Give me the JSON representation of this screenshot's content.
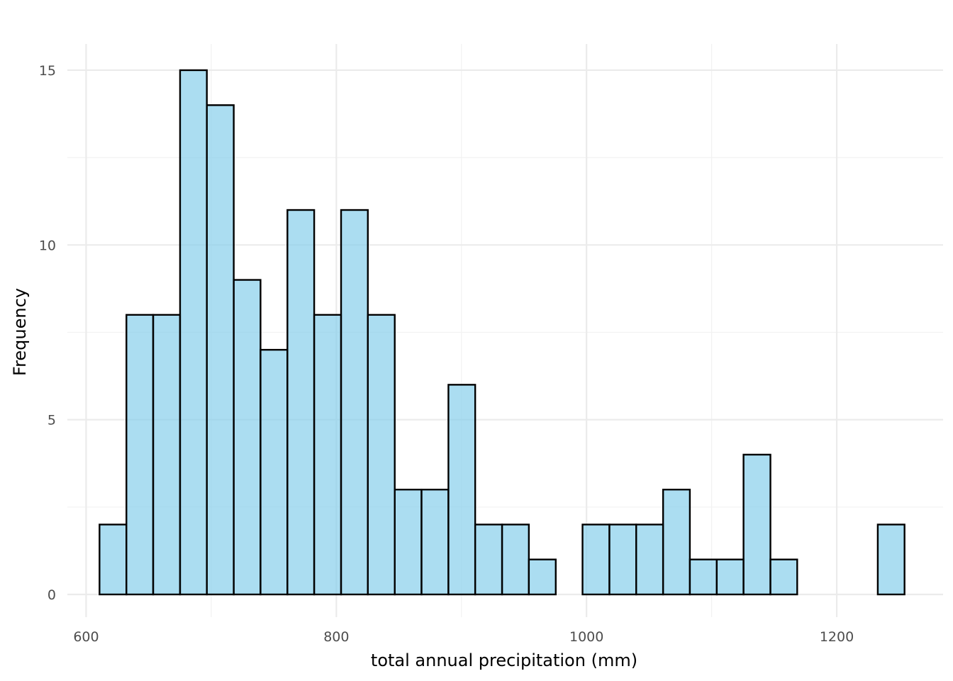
{
  "chart_data": {
    "type": "histogram",
    "xlabel": "total annual precipitation (mm)",
    "ylabel": "Frequency",
    "xlim": [
      585,
      1285
    ],
    "ylim": [
      -0.65,
      15.75
    ],
    "x_ticks": [
      600,
      800,
      1000,
      1200
    ],
    "y_ticks": [
      0,
      5,
      10,
      15
    ],
    "grid": true,
    "bar_fill": "#87ceeb",
    "bar_outline": "#000000",
    "bins": [
      {
        "x0": 610.7,
        "x1": 632.2,
        "count": 2
      },
      {
        "x0": 632.2,
        "x1": 653.6,
        "count": 8
      },
      {
        "x0": 653.6,
        "x1": 675.1,
        "count": 8
      },
      {
        "x0": 675.1,
        "x1": 696.5,
        "count": 15
      },
      {
        "x0": 696.5,
        "x1": 718.0,
        "count": 14
      },
      {
        "x0": 718.0,
        "x1": 739.4,
        "count": 9
      },
      {
        "x0": 739.4,
        "x1": 760.9,
        "count": 7
      },
      {
        "x0": 760.9,
        "x1": 782.3,
        "count": 11
      },
      {
        "x0": 782.3,
        "x1": 803.8,
        "count": 8
      },
      {
        "x0": 803.8,
        "x1": 825.2,
        "count": 11
      },
      {
        "x0": 825.2,
        "x1": 846.7,
        "count": 8
      },
      {
        "x0": 846.7,
        "x1": 868.1,
        "count": 3
      },
      {
        "x0": 868.1,
        "x1": 889.6,
        "count": 3
      },
      {
        "x0": 889.6,
        "x1": 911.0,
        "count": 6
      },
      {
        "x0": 911.0,
        "x1": 932.5,
        "count": 2
      },
      {
        "x0": 932.5,
        "x1": 953.9,
        "count": 2
      },
      {
        "x0": 953.9,
        "x1": 975.4,
        "count": 1
      },
      {
        "x0": 975.4,
        "x1": 996.8,
        "count": 0
      },
      {
        "x0": 996.8,
        "x1": 1018.3,
        "count": 2
      },
      {
        "x0": 1018.3,
        "x1": 1039.7,
        "count": 2
      },
      {
        "x0": 1039.7,
        "x1": 1061.2,
        "count": 2
      },
      {
        "x0": 1061.2,
        "x1": 1082.6,
        "count": 3
      },
      {
        "x0": 1082.6,
        "x1": 1104.1,
        "count": 1
      },
      {
        "x0": 1104.1,
        "x1": 1125.5,
        "count": 1
      },
      {
        "x0": 1125.5,
        "x1": 1147.0,
        "count": 4
      },
      {
        "x0": 1147.0,
        "x1": 1168.4,
        "count": 1
      },
      {
        "x0": 1168.4,
        "x1": 1189.9,
        "count": 0
      },
      {
        "x0": 1189.9,
        "x1": 1211.3,
        "count": 0
      },
      {
        "x0": 1211.3,
        "x1": 1232.8,
        "count": 0
      },
      {
        "x0": 1232.8,
        "x1": 1254.2,
        "count": 2
      }
    ]
  }
}
